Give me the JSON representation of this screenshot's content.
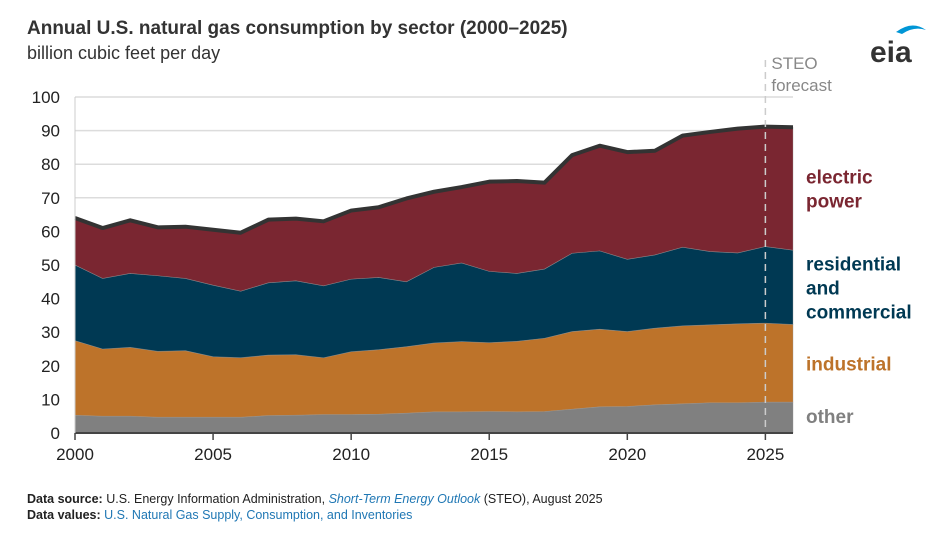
{
  "header": {
    "title": "Annual U.S. natural gas consumption by sector (2000–2025)",
    "subtitle": "billion cubic feet per day",
    "logo_text": "eia"
  },
  "footer": {
    "source_label": "Data source:",
    "source_text": "U.S. Energy Information Administration,",
    "source_link": "Short-Term Energy Outlook",
    "source_tail": "(STEO), August 2025",
    "values_label": "Data values:",
    "values_link": "U.S. Natural Gas Supply, Consumption, and Inventories"
  },
  "chart_data": {
    "type": "area",
    "stacked": true,
    "title": "Annual U.S. natural gas consumption by sector (2000–2025)",
    "ylabel": "billion cubic feet per day",
    "x": [
      2000,
      2001,
      2002,
      2003,
      2004,
      2005,
      2006,
      2007,
      2008,
      2009,
      2010,
      2011,
      2012,
      2013,
      2014,
      2015,
      2016,
      2017,
      2018,
      2019,
      2020,
      2021,
      2022,
      2023,
      2024,
      2025,
      2026
    ],
    "xlim": [
      2000,
      2026
    ],
    "ylim": [
      0,
      100
    ],
    "xticks": [
      "2000",
      "2005",
      "2010",
      "2015",
      "2020",
      "2025"
    ],
    "yticks": [
      "0",
      "10",
      "20",
      "30",
      "40",
      "50",
      "60",
      "70",
      "80",
      "90",
      "100"
    ],
    "grid": true,
    "annotation": {
      "line1": "STEO",
      "line2": "forecast",
      "x": 2025
    },
    "series": [
      {
        "name": "other",
        "label_lines": [
          "other"
        ],
        "color": "#808080",
        "values": [
          5.3,
          5.0,
          5.0,
          4.7,
          4.7,
          4.7,
          4.7,
          5.2,
          5.3,
          5.5,
          5.5,
          5.6,
          5.9,
          6.3,
          6.3,
          6.4,
          6.3,
          6.4,
          7.1,
          7.8,
          7.9,
          8.4,
          8.7,
          9.0,
          9.0,
          9.2,
          9.2
        ]
      },
      {
        "name": "industrial",
        "label_lines": [
          "industrial"
        ],
        "color": "#bd732a",
        "values": [
          22.2,
          20.0,
          20.5,
          19.6,
          19.8,
          18.0,
          17.7,
          18.0,
          18.0,
          16.9,
          18.7,
          19.2,
          19.8,
          20.5,
          20.9,
          20.5,
          21.0,
          21.8,
          23.1,
          23.1,
          22.3,
          22.8,
          23.2,
          23.2,
          23.5,
          23.5,
          23.1
        ]
      },
      {
        "name": "residential and commercial",
        "label_lines": [
          "residential",
          "and",
          "commercial"
        ],
        "color": "#003953",
        "values": [
          22.5,
          21.0,
          22.0,
          22.5,
          21.5,
          21.3,
          19.8,
          21.5,
          22.0,
          21.4,
          21.6,
          21.5,
          19.3,
          22.5,
          23.4,
          21.2,
          20.2,
          20.6,
          23.3,
          23.3,
          21.5,
          21.8,
          23.4,
          21.8,
          21.1,
          22.8,
          22.1
        ]
      },
      {
        "name": "electric power",
        "label_lines": [
          "electric",
          "power"
        ],
        "color": "#7a2631",
        "values": [
          14.0,
          15.0,
          15.8,
          14.4,
          15.4,
          16.5,
          17.4,
          18.8,
          18.5,
          19.2,
          20.4,
          20.9,
          24.8,
          22.5,
          22.6,
          26.7,
          27.5,
          25.7,
          29.2,
          31.3,
          31.9,
          31.0,
          33.2,
          35.6,
          37.0,
          35.7,
          36.6
        ]
      }
    ]
  }
}
